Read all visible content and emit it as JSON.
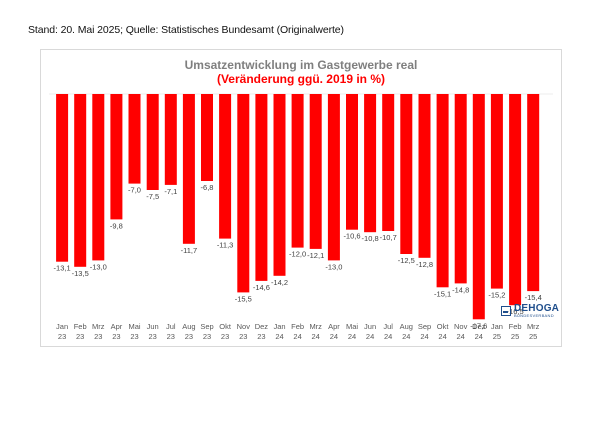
{
  "header": {
    "note": "Stand: 20. Mai 2025; Quelle: Statistisches Bundesamt (Originalwerte)"
  },
  "logo": {
    "name": "DEHOGA",
    "tagline": "BUNDESVERBAND"
  },
  "colors": {
    "bar": "#ff0000",
    "title": "#7f7f7f",
    "subtitle": "#ff0000",
    "logo": "#1f4e8c"
  },
  "chart_data": {
    "type": "bar",
    "title": "Umsatzentwicklung im Gastgewerbe real",
    "subtitle": "(Veränderung ggü. 2019 in %)",
    "xlabel": "",
    "ylabel": "",
    "ylim": [
      -20,
      0
    ],
    "grid": false,
    "categories": [
      [
        "Jan",
        "23"
      ],
      [
        "Feb",
        "23"
      ],
      [
        "Mrz",
        "23"
      ],
      [
        "Apr",
        "23"
      ],
      [
        "Mai",
        "23"
      ],
      [
        "Jun",
        "23"
      ],
      [
        "Jul",
        "23"
      ],
      [
        "Aug",
        "23"
      ],
      [
        "Sep",
        "23"
      ],
      [
        "Okt",
        "23"
      ],
      [
        "Nov",
        "23"
      ],
      [
        "Dez",
        "23"
      ],
      [
        "Jan",
        "24"
      ],
      [
        "Feb",
        "24"
      ],
      [
        "Mrz",
        "24"
      ],
      [
        "Apr",
        "24"
      ],
      [
        "Mai",
        "24"
      ],
      [
        "Jun",
        "24"
      ],
      [
        "Jul",
        "24"
      ],
      [
        "Aug",
        "24"
      ],
      [
        "Sep",
        "24"
      ],
      [
        "Okt",
        "24"
      ],
      [
        "Nov",
        "24"
      ],
      [
        "Dez",
        "24"
      ],
      [
        "Jan",
        "25"
      ],
      [
        "Feb",
        "25"
      ],
      [
        "Mrz",
        "25"
      ]
    ],
    "values": [
      -13.1,
      -13.5,
      -13.0,
      -9.8,
      -7.0,
      -7.5,
      -7.1,
      -11.7,
      -6.8,
      -11.3,
      -15.5,
      -14.6,
      -14.2,
      -12.0,
      -12.1,
      -13.0,
      -10.6,
      -10.8,
      -10.7,
      -12.5,
      -12.8,
      -15.1,
      -14.8,
      -17.6,
      -15.2,
      -16.5,
      -15.4
    ],
    "labels": [
      "-13,1",
      "-13,5",
      "-13,0",
      "-9,8",
      "-7,0",
      "-7,5",
      "-7,1",
      "-11,7",
      "-6,8",
      "-11,3",
      "-15,5",
      "-14,6",
      "-14,2",
      "-12,0",
      "-12,1",
      "-13,0",
      "-10,6",
      "-10,8",
      "-10,7",
      "-12,5",
      "-12,8",
      "-15,1",
      "-14,8",
      "-17,6",
      "-15,2",
      "-16,5",
      "-15,4"
    ]
  }
}
